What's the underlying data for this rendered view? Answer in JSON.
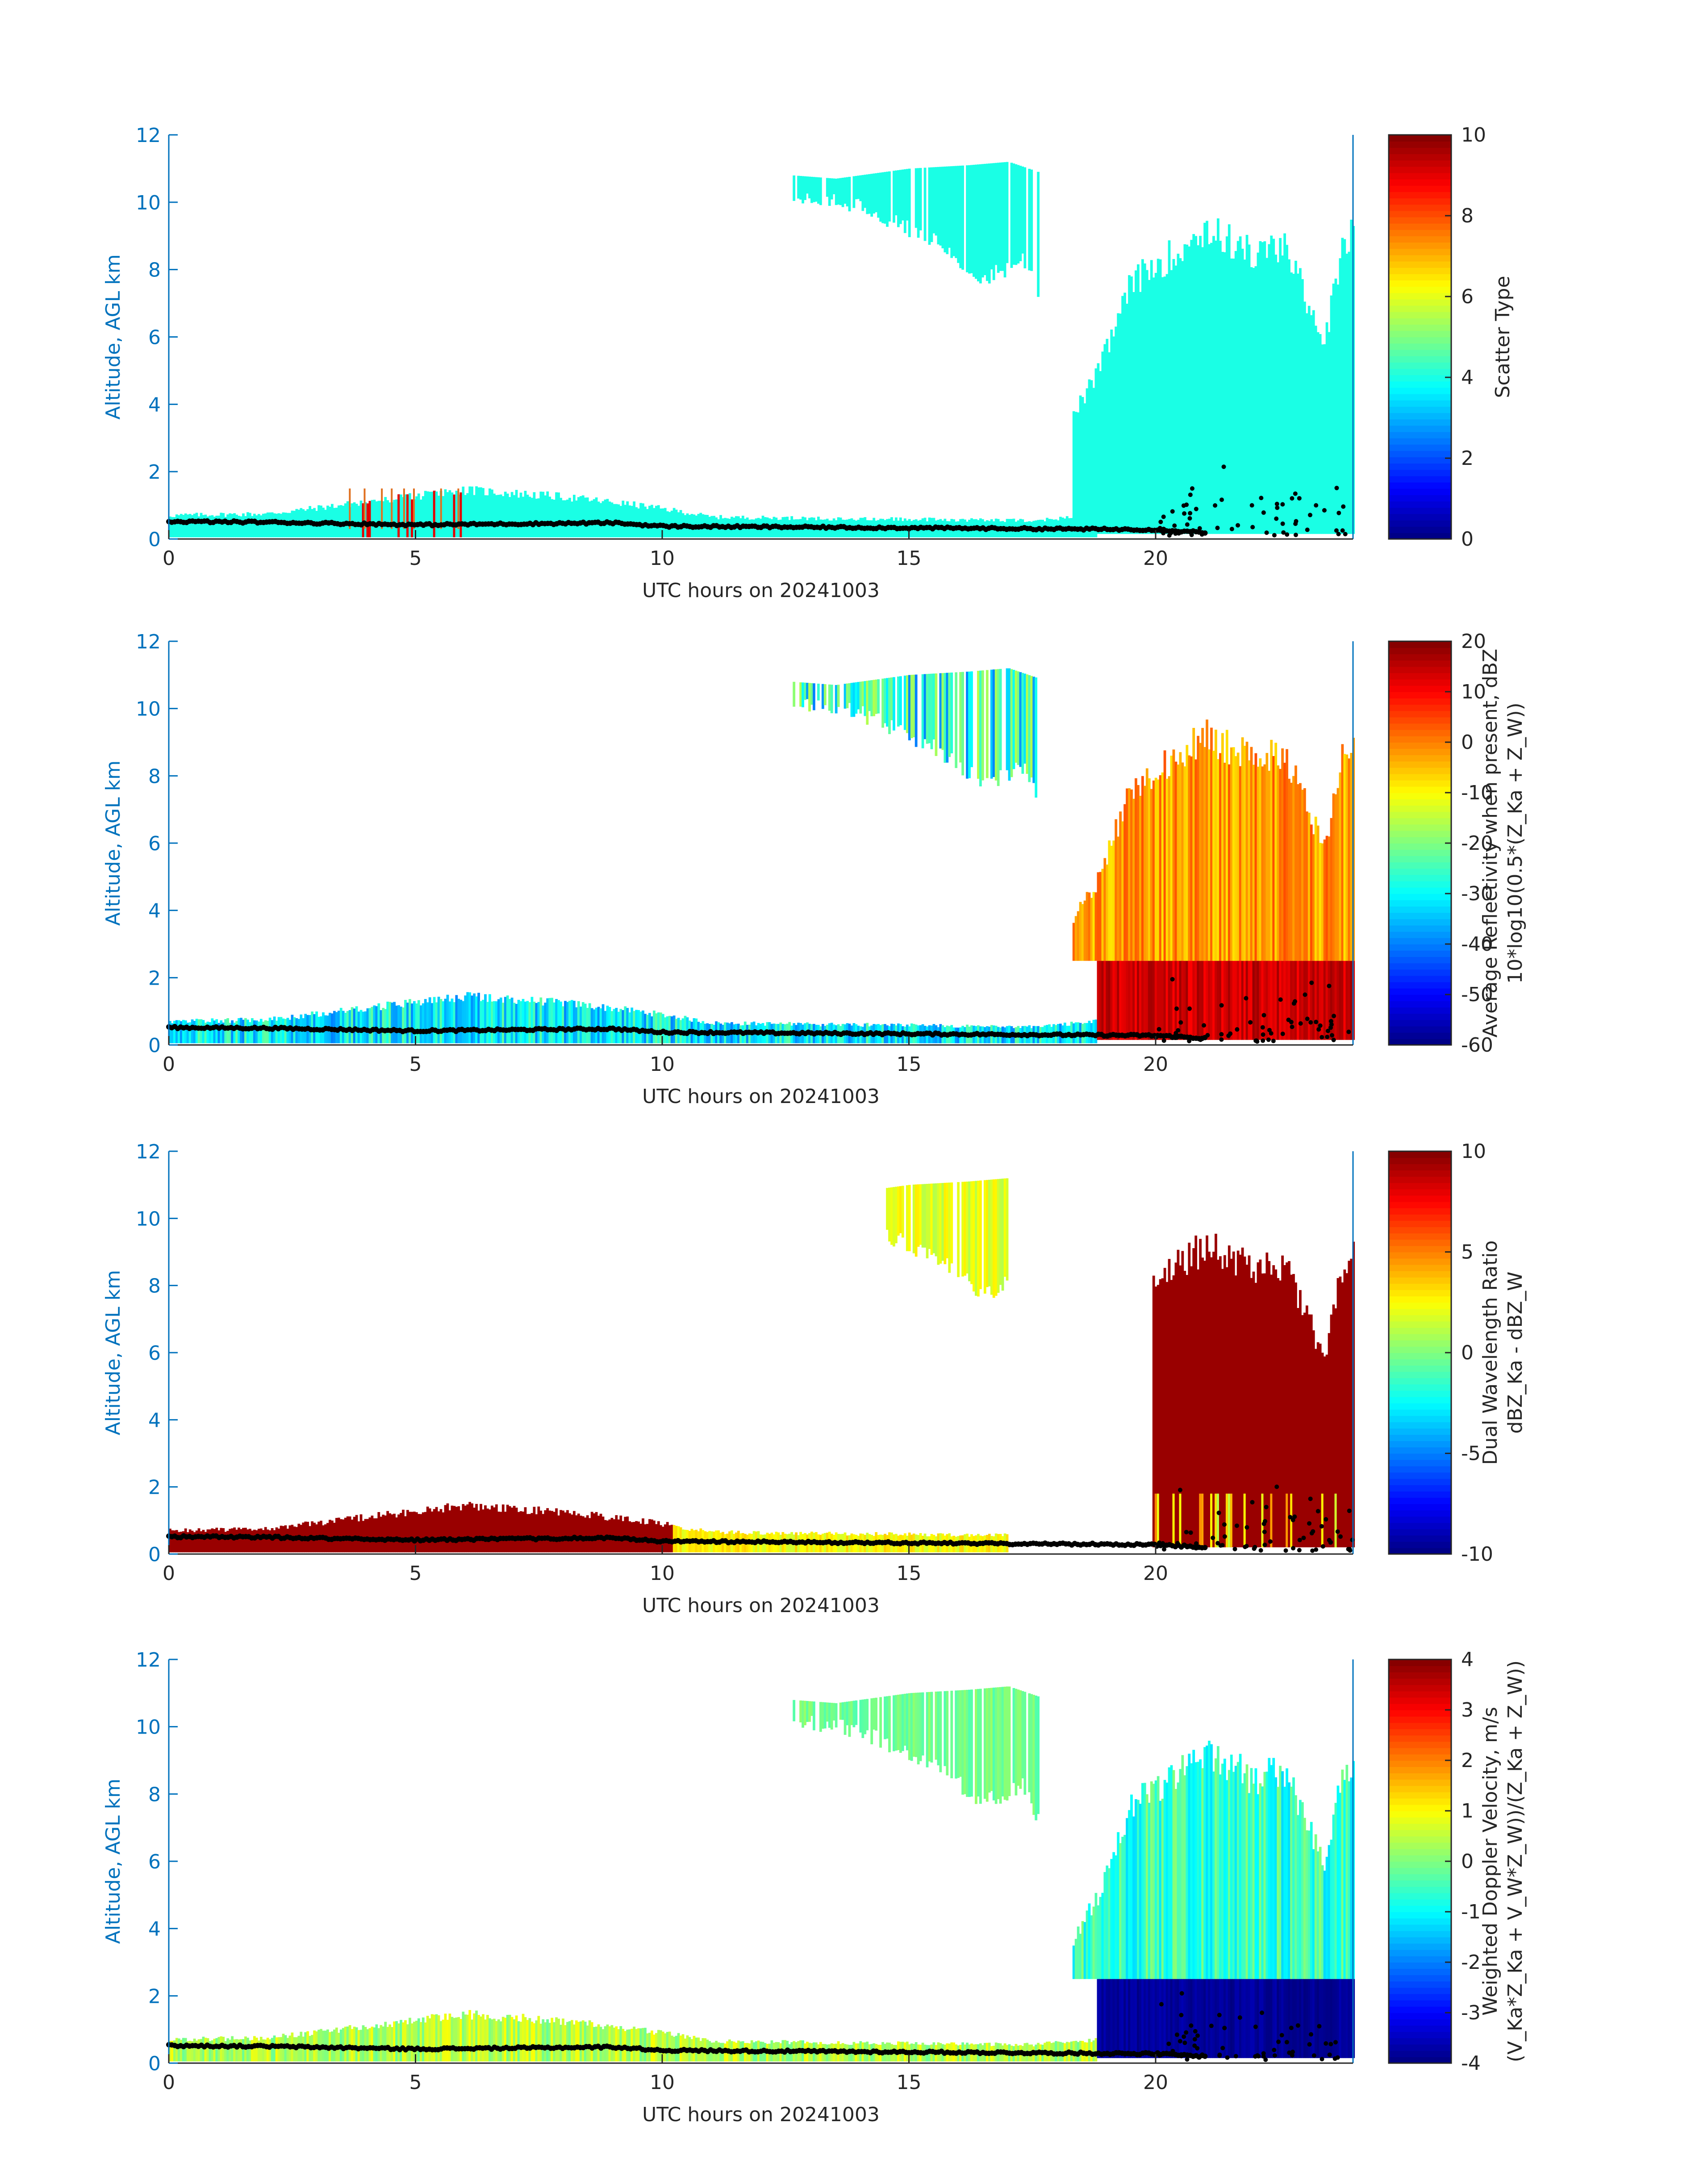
{
  "figure": {
    "date_label": "UTC hours on 20241003"
  },
  "colors": {
    "axis_blue": "#0072BD",
    "text_dark": "#262626",
    "scatter_cyan": "#27F5DC",
    "layer_line": "#000000",
    "spike_orange": "#E07020"
  },
  "chart_data": [
    {
      "type": "heatmap",
      "name": "scatter-type",
      "xlabel": "UTC hours on 20241003",
      "ylabel": "Altitude, AGL km",
      "xlim": [
        0,
        24
      ],
      "ylim": [
        0,
        12
      ],
      "xticks": [
        0,
        5,
        10,
        15,
        20
      ],
      "yticks": [
        0,
        2,
        4,
        6,
        8,
        10,
        12
      ],
      "colorbar": {
        "label": [
          "Scatter Type"
        ],
        "ticks": [
          0,
          2,
          4,
          6,
          8,
          10
        ],
        "range": [
          0,
          10
        ],
        "colormap": "jet"
      },
      "dominant_value": 4,
      "regions": [
        {
          "desc": "boundary layer",
          "x": [
            0,
            10,
            17,
            18.8
          ],
          "top_km": [
            0.7,
            1.5,
            0.55,
            0.5
          ]
        },
        {
          "desc": "cirrus",
          "x": [
            12.6,
            17.2
          ],
          "base_km": [
            8.5,
            9.5
          ],
          "top_km": [
            10.7,
            11.2
          ]
        },
        {
          "desc": "deep cloud",
          "x": [
            18.8,
            24
          ],
          "base_km": [
            0.2,
            0.2
          ],
          "top_km": [
            8.5,
            9.5
          ]
        }
      ]
    },
    {
      "type": "heatmap",
      "name": "reflectivity",
      "xlabel": "UTC hours on 20241003",
      "ylabel": "Altitude, AGL km",
      "xlim": [
        0,
        24
      ],
      "ylim": [
        0,
        12
      ],
      "xticks": [
        0,
        5,
        10,
        15,
        20
      ],
      "yticks": [
        0,
        2,
        4,
        6,
        8,
        10,
        12
      ],
      "colorbar": {
        "label": [
          "Average Reflectivity when present, dBZ",
          "10*log10(0.5*(Z_Ka + Z_W))"
        ],
        "ticks": [
          -60,
          -50,
          -40,
          -30,
          -20,
          -10,
          0,
          10,
          20
        ],
        "range": [
          -60,
          20
        ],
        "colormap": "jet"
      },
      "typical_values_dBZ": {
        "boundary_layer": -35,
        "cirrus": -30,
        "deep_cloud_upper": -5,
        "deep_cloud_lower": 12
      }
    },
    {
      "type": "heatmap",
      "name": "dual-wavelength-ratio",
      "xlabel": "UTC hours on 20241003",
      "ylabel": "Altitude, AGL km",
      "xlim": [
        0,
        24
      ],
      "ylim": [
        0,
        12
      ],
      "xticks": [
        0,
        5,
        10,
        15,
        20
      ],
      "yticks": [
        0,
        2,
        4,
        6,
        8,
        10,
        12
      ],
      "colorbar": {
        "label": [
          "Dual Wavelength Ratio",
          "dBZ_Ka - dBZ_W"
        ],
        "ticks": [
          -10,
          -5,
          0,
          5,
          10
        ],
        "range": [
          -10,
          10
        ],
        "colormap": "jet"
      },
      "typical_values_dB": {
        "boundary_layer_early": 10,
        "boundary_layer_late": 1,
        "cirrus": 1,
        "deep_cloud": 10
      }
    },
    {
      "type": "heatmap",
      "name": "doppler-velocity",
      "xlabel": "UTC hours on 20241003",
      "ylabel": "Altitude, AGL km",
      "xlim": [
        0,
        24
      ],
      "ylim": [
        0,
        12
      ],
      "xticks": [
        0,
        5,
        10,
        15,
        20
      ],
      "yticks": [
        0,
        2,
        4,
        6,
        8,
        10,
        12
      ],
      "colorbar": {
        "label": [
          "Weighted Doppler Velocity, m/s",
          "(V_Ka*Z_Ka + V_W*Z_W))/(Z_Ka + Z_W))"
        ],
        "ticks": [
          -4,
          -3,
          -2,
          -1,
          0,
          1,
          2,
          3,
          4
        ],
        "range": [
          -4,
          4
        ],
        "colormap": "jet"
      },
      "typical_values_ms": {
        "boundary_layer": 0.2,
        "cirrus": -0.5,
        "deep_cloud_upper": -1.2,
        "deep_cloud_lower": -3.8
      }
    }
  ]
}
